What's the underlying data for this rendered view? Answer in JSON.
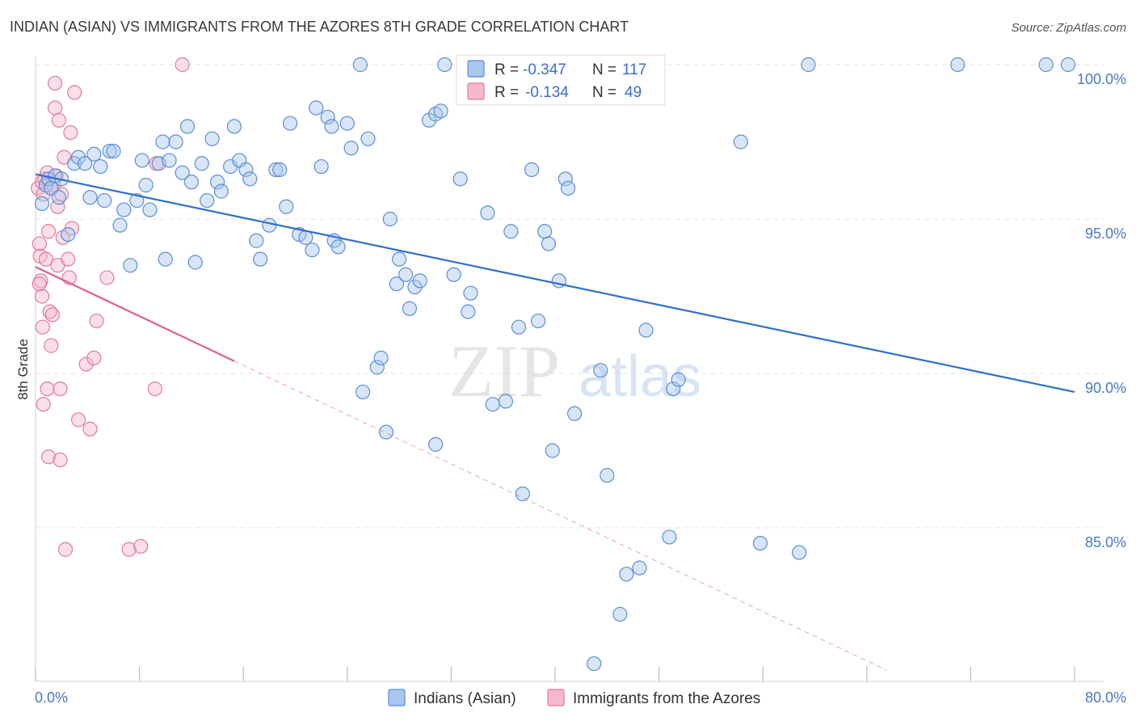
{
  "chart_data": {
    "type": "scatter",
    "title": "INDIAN (ASIAN) VS IMMIGRANTS FROM THE AZORES 8TH GRADE CORRELATION CHART",
    "source": "Source: ZipAtlas.com",
    "ylabel": "8th Grade",
    "xlim": [
      0,
      80
    ],
    "ylim": [
      80,
      100.5
    ],
    "x_tick_labels": [
      "0.0%",
      "80.0%"
    ],
    "y_ticks": [
      {
        "value": 100,
        "label": "100.0%"
      },
      {
        "value": 95,
        "label": "95.0%"
      },
      {
        "value": 90,
        "label": "90.0%"
      },
      {
        "value": 85,
        "label": "85.0%"
      }
    ],
    "x_minor_ticks": [
      0,
      8,
      16,
      24,
      32,
      40,
      48,
      56,
      64,
      72,
      80
    ],
    "watermark": {
      "zip": "ZIP",
      "atlas": "atlas"
    },
    "legend_stats": [
      {
        "r_label": "R =",
        "r_value": "-0.347",
        "n_label": "N =",
        "n_value": "117"
      },
      {
        "r_label": "R =",
        "r_value": "-0.134",
        "n_label": "N =",
        "n_value": "49"
      }
    ],
    "colors": {
      "series1_fill": "#a9c6ee",
      "series1_stroke": "#5b8fd6",
      "series1_line": "#2f6fcf",
      "series2_fill": "#f6b9cc",
      "series2_stroke": "#e37a9c",
      "series2_line": "#e0608a",
      "grid": "#e4e4e4",
      "axis_text": "#4a78c8"
    },
    "series": [
      {
        "name": "Indians (Asian)",
        "trend": {
          "x0": 0,
          "y0": 96.45,
          "x1": 80,
          "y1": 89.4,
          "dashed_to": 80
        },
        "points": [
          [
            0.5,
            95.5
          ],
          [
            0.8,
            96.1
          ],
          [
            1.0,
            96.3
          ],
          [
            1.2,
            96.0
          ],
          [
            1.5,
            96.4
          ],
          [
            1.8,
            95.7
          ],
          [
            2.0,
            96.3
          ],
          [
            2.5,
            94.5
          ],
          [
            3.0,
            96.8
          ],
          [
            3.3,
            97.0
          ],
          [
            3.8,
            96.8
          ],
          [
            4.2,
            95.7
          ],
          [
            4.5,
            97.1
          ],
          [
            5.0,
            96.7
          ],
          [
            5.3,
            95.6
          ],
          [
            5.7,
            97.2
          ],
          [
            6.0,
            97.2
          ],
          [
            6.5,
            94.8
          ],
          [
            6.8,
            95.3
          ],
          [
            7.3,
            93.5
          ],
          [
            7.8,
            95.6
          ],
          [
            8.2,
            96.9
          ],
          [
            8.5,
            96.1
          ],
          [
            8.8,
            95.3
          ],
          [
            9.5,
            96.8
          ],
          [
            9.8,
            97.5
          ],
          [
            10.0,
            93.7
          ],
          [
            10.3,
            96.9
          ],
          [
            10.8,
            97.5
          ],
          [
            11.3,
            96.5
          ],
          [
            11.7,
            98.0
          ],
          [
            12.0,
            96.2
          ],
          [
            12.3,
            93.6
          ],
          [
            12.8,
            96.8
          ],
          [
            13.2,
            95.6
          ],
          [
            13.6,
            97.6
          ],
          [
            14.0,
            96.2
          ],
          [
            14.3,
            95.9
          ],
          [
            15.0,
            96.7
          ],
          [
            15.3,
            98.0
          ],
          [
            15.7,
            96.9
          ],
          [
            16.2,
            96.6
          ],
          [
            16.5,
            96.3
          ],
          [
            17.0,
            94.3
          ],
          [
            17.3,
            93.7
          ],
          [
            18.0,
            94.8
          ],
          [
            18.5,
            96.6
          ],
          [
            18.8,
            96.6
          ],
          [
            19.3,
            95.4
          ],
          [
            19.6,
            98.1
          ],
          [
            20.3,
            94.5
          ],
          [
            20.8,
            94.4
          ],
          [
            21.3,
            94.0
          ],
          [
            21.6,
            98.6
          ],
          [
            22.0,
            96.7
          ],
          [
            22.5,
            98.3
          ],
          [
            22.8,
            98.0
          ],
          [
            23.0,
            94.3
          ],
          [
            23.3,
            94.1
          ],
          [
            24.0,
            98.1
          ],
          [
            24.3,
            97.3
          ],
          [
            25.0,
            100.0
          ],
          [
            25.6,
            97.6
          ],
          [
            26.3,
            90.2
          ],
          [
            26.6,
            90.5
          ],
          [
            27.0,
            88.1
          ],
          [
            27.3,
            95.0
          ],
          [
            27.8,
            92.9
          ],
          [
            28.0,
            93.7
          ],
          [
            28.5,
            93.2
          ],
          [
            28.8,
            92.1
          ],
          [
            29.2,
            92.8
          ],
          [
            29.6,
            93.0
          ],
          [
            30.3,
            98.2
          ],
          [
            30.8,
            98.4
          ],
          [
            31.2,
            98.5
          ],
          [
            30.8,
            87.7
          ],
          [
            31.5,
            100.0
          ],
          [
            32.2,
            93.2
          ],
          [
            32.7,
            96.3
          ],
          [
            33.3,
            92.0
          ],
          [
            33.5,
            92.6
          ],
          [
            34.8,
            95.2
          ],
          [
            35.2,
            89.0
          ],
          [
            36.2,
            89.1
          ],
          [
            36.6,
            94.6
          ],
          [
            37.2,
            91.5
          ],
          [
            37.5,
            86.1
          ],
          [
            38.2,
            96.6
          ],
          [
            38.7,
            91.7
          ],
          [
            39.2,
            94.6
          ],
          [
            39.5,
            94.2
          ],
          [
            39.8,
            87.5
          ],
          [
            40.3,
            93.0
          ],
          [
            40.8,
            96.3
          ],
          [
            41.0,
            96.0
          ],
          [
            41.5,
            88.7
          ],
          [
            43.0,
            80.6
          ],
          [
            43.5,
            90.1
          ],
          [
            44.0,
            86.7
          ],
          [
            45.0,
            82.2
          ],
          [
            45.5,
            83.5
          ],
          [
            46.5,
            83.7
          ],
          [
            47.0,
            91.4
          ],
          [
            48.8,
            84.7
          ],
          [
            49.1,
            89.5
          ],
          [
            49.5,
            89.8
          ],
          [
            54.3,
            97.5
          ],
          [
            55.8,
            84.5
          ],
          [
            58.8,
            84.2
          ],
          [
            59.5,
            100.0
          ],
          [
            71.0,
            100.0
          ],
          [
            77.8,
            100.0
          ],
          [
            79.5,
            100.0
          ],
          [
            25.2,
            89.4
          ]
        ]
      },
      {
        "name": "Immigrants from the Azores",
        "trend": {
          "x0": 0,
          "y0": 93.45,
          "x1": 15.3,
          "y1": 90.4,
          "dashed_to": 65.5
        },
        "points": [
          [
            0.2,
            96.0
          ],
          [
            0.3,
            94.2
          ],
          [
            0.35,
            93.8
          ],
          [
            0.4,
            93.0
          ],
          [
            0.5,
            92.5
          ],
          [
            0.55,
            91.5
          ],
          [
            0.6,
            89.0
          ],
          [
            0.7,
            96.3
          ],
          [
            0.8,
            93.7
          ],
          [
            0.9,
            89.5
          ],
          [
            1.0,
            87.3
          ],
          [
            1.0,
            94.6
          ],
          [
            1.1,
            92.0
          ],
          [
            1.2,
            90.9
          ],
          [
            1.3,
            91.9
          ],
          [
            1.4,
            96.1
          ],
          [
            1.5,
            99.4
          ],
          [
            1.5,
            98.6
          ],
          [
            1.6,
            96.4
          ],
          [
            1.7,
            93.5
          ],
          [
            1.7,
            95.4
          ],
          [
            1.8,
            98.2
          ],
          [
            1.9,
            89.5
          ],
          [
            1.9,
            87.2
          ],
          [
            2.0,
            95.8
          ],
          [
            2.1,
            94.4
          ],
          [
            2.2,
            97.0
          ],
          [
            2.3,
            84.3
          ],
          [
            2.5,
            93.7
          ],
          [
            2.6,
            93.1
          ],
          [
            2.7,
            97.8
          ],
          [
            2.8,
            94.7
          ],
          [
            3.0,
            99.1
          ],
          [
            3.3,
            88.5
          ],
          [
            3.9,
            90.3
          ],
          [
            4.2,
            88.2
          ],
          [
            4.5,
            90.5
          ],
          [
            4.7,
            91.7
          ],
          [
            5.5,
            93.1
          ],
          [
            7.2,
            84.3
          ],
          [
            8.1,
            84.4
          ],
          [
            9.2,
            89.5
          ],
          [
            9.3,
            96.8
          ],
          [
            11.3,
            100.0
          ],
          [
            0.3,
            92.9
          ],
          [
            0.5,
            96.2
          ],
          [
            0.9,
            96.5
          ],
          [
            1.2,
            96.0
          ],
          [
            0.6,
            95.8
          ]
        ]
      }
    ]
  },
  "bottom_legend": [
    {
      "label": "Indians (Asian)"
    },
    {
      "label": "Immigrants from the Azores"
    }
  ]
}
